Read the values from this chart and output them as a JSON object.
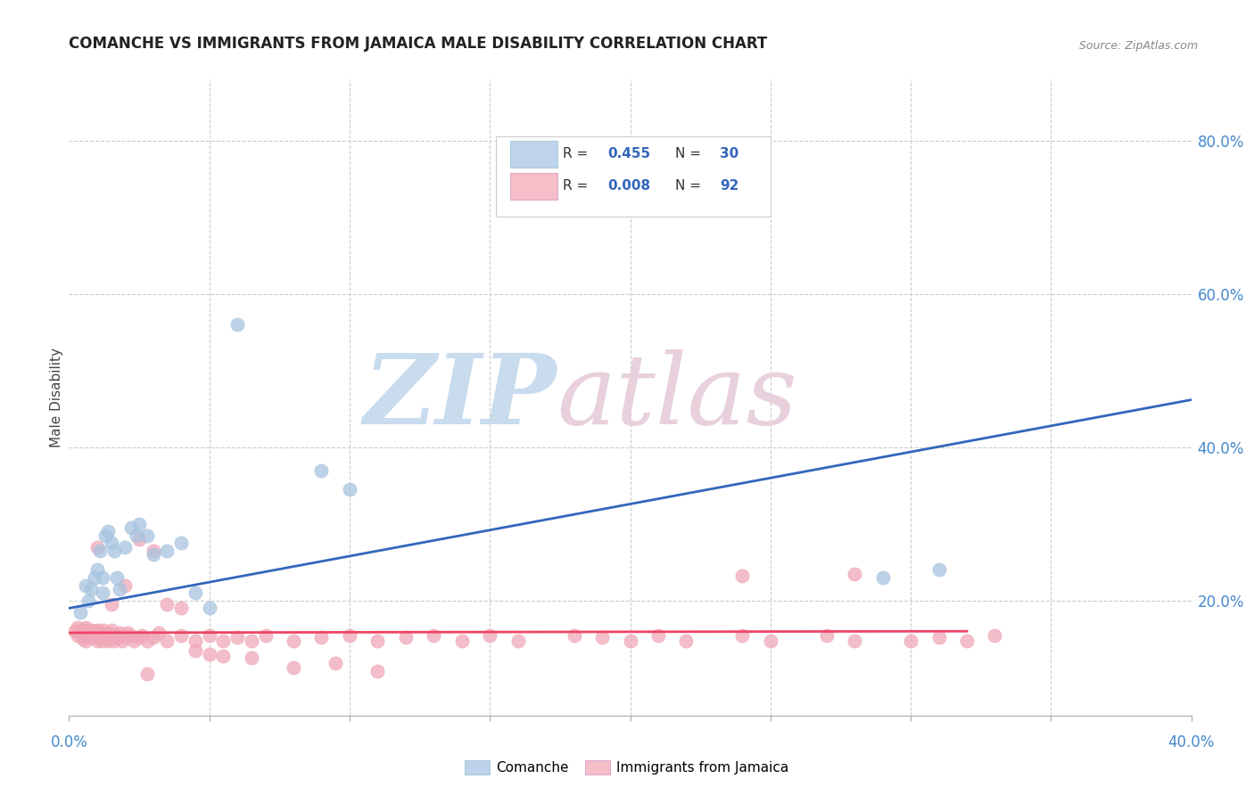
{
  "title": "COMANCHE VS IMMIGRANTS FROM JAMAICA MALE DISABILITY CORRELATION CHART",
  "source": "Source: ZipAtlas.com",
  "ylabel": "Male Disability",
  "legend_labels": [
    "Comanche",
    "Immigrants from Jamaica"
  ],
  "blue_color": "#A8C4E0",
  "pink_color": "#F0A8B8",
  "blue_fill": "#BDD4EA",
  "pink_fill": "#F5BEC8",
  "trend_blue": "#3366BB",
  "trend_pink": "#EE4466",
  "xlim": [
    0.0,
    0.4
  ],
  "ylim": [
    0.05,
    0.88
  ],
  "ytick_vals": [
    0.2,
    0.4,
    0.6,
    0.8
  ],
  "ytick_labels": [
    "20.0%",
    "40.0%",
    "60.0%",
    "80.0%"
  ],
  "blue_scatter_x": [
    0.004,
    0.006,
    0.007,
    0.008,
    0.009,
    0.01,
    0.011,
    0.012,
    0.012,
    0.013,
    0.014,
    0.015,
    0.016,
    0.017,
    0.018,
    0.02,
    0.022,
    0.024,
    0.025,
    0.028,
    0.03,
    0.035,
    0.04,
    0.045,
    0.05,
    0.06,
    0.09,
    0.1,
    0.29,
    0.31
  ],
  "blue_scatter_y": [
    0.185,
    0.22,
    0.2,
    0.215,
    0.23,
    0.24,
    0.265,
    0.21,
    0.23,
    0.285,
    0.29,
    0.275,
    0.265,
    0.23,
    0.215,
    0.27,
    0.295,
    0.285,
    0.3,
    0.285,
    0.26,
    0.265,
    0.275,
    0.21,
    0.19,
    0.56,
    0.37,
    0.345,
    0.23,
    0.24
  ],
  "pink_scatter_x": [
    0.002,
    0.003,
    0.003,
    0.004,
    0.004,
    0.005,
    0.005,
    0.005,
    0.006,
    0.006,
    0.006,
    0.007,
    0.007,
    0.007,
    0.008,
    0.008,
    0.008,
    0.009,
    0.009,
    0.01,
    0.01,
    0.01,
    0.011,
    0.011,
    0.012,
    0.012,
    0.013,
    0.014,
    0.014,
    0.015,
    0.015,
    0.016,
    0.017,
    0.018,
    0.018,
    0.019,
    0.02,
    0.021,
    0.022,
    0.023,
    0.025,
    0.026,
    0.028,
    0.03,
    0.032,
    0.035,
    0.04,
    0.045,
    0.05,
    0.055,
    0.06,
    0.065,
    0.07,
    0.08,
    0.09,
    0.1,
    0.11,
    0.12,
    0.13,
    0.14,
    0.15,
    0.16,
    0.18,
    0.19,
    0.2,
    0.21,
    0.22,
    0.24,
    0.25,
    0.27,
    0.28,
    0.3,
    0.31,
    0.32,
    0.33,
    0.01,
    0.015,
    0.02,
    0.025,
    0.03,
    0.035,
    0.04,
    0.045,
    0.05,
    0.055,
    0.028,
    0.065,
    0.08,
    0.095,
    0.11,
    0.24,
    0.28
  ],
  "pink_scatter_y": [
    0.16,
    0.155,
    0.165,
    0.158,
    0.162,
    0.15,
    0.155,
    0.162,
    0.148,
    0.158,
    0.165,
    0.155,
    0.162,
    0.152,
    0.155,
    0.162,
    0.158,
    0.152,
    0.16,
    0.148,
    0.155,
    0.162,
    0.158,
    0.152,
    0.148,
    0.162,
    0.155,
    0.148,
    0.158,
    0.155,
    0.162,
    0.148,
    0.152,
    0.155,
    0.158,
    0.148,
    0.152,
    0.158,
    0.155,
    0.148,
    0.152,
    0.155,
    0.148,
    0.152,
    0.158,
    0.148,
    0.155,
    0.148,
    0.155,
    0.148,
    0.152,
    0.148,
    0.155,
    0.148,
    0.152,
    0.155,
    0.148,
    0.152,
    0.155,
    0.148,
    0.155,
    0.148,
    0.155,
    0.152,
    0.148,
    0.155,
    0.148,
    0.155,
    0.148,
    0.155,
    0.148,
    0.148,
    0.152,
    0.148,
    0.155,
    0.27,
    0.195,
    0.22,
    0.28,
    0.265,
    0.195,
    0.19,
    0.135,
    0.13,
    0.128,
    0.105,
    0.125,
    0.112,
    0.118,
    0.108,
    0.232,
    0.235
  ],
  "blue_trend_x": [
    0.0,
    0.4
  ],
  "blue_trend_y": [
    0.19,
    0.462
  ],
  "pink_trend_x": [
    0.0,
    0.32
  ],
  "pink_trend_y": [
    0.158,
    0.16
  ],
  "grid_color": "#CCCCCC",
  "bg_color": "#FFFFFF"
}
